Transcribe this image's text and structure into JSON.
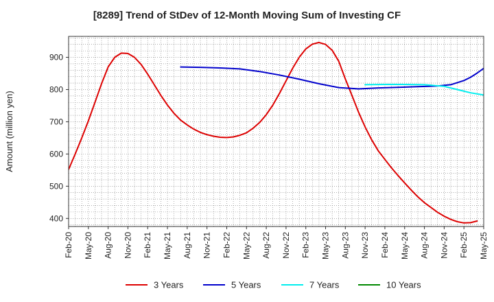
{
  "chart_data": {
    "type": "line",
    "title": "[8289]  Trend of StDev of 12-Month Moving Sum of Investing CF",
    "xlabel": "",
    "ylabel": "Amount (million yen)",
    "ylim": [
      375,
      965
    ],
    "yticks": [
      400,
      500,
      600,
      700,
      800,
      900
    ],
    "x_tick_labels": [
      "Feb-20",
      "May-20",
      "Aug-20",
      "Nov-20",
      "Feb-21",
      "May-21",
      "Aug-21",
      "Nov-21",
      "Feb-22",
      "May-22",
      "Aug-22",
      "Nov-22",
      "Feb-23",
      "May-23",
      "Aug-23",
      "Nov-23",
      "Feb-24",
      "May-24",
      "Aug-24",
      "Nov-24",
      "Feb-25",
      "May-25"
    ],
    "x_start": "2020-02",
    "x_end": "2025-05",
    "grid": true,
    "legend_position": "bottom",
    "series": [
      {
        "name": "3 Years",
        "color": "#dd0000",
        "points": [
          [
            "2020-02",
            552
          ],
          [
            "2020-03",
            600
          ],
          [
            "2020-04",
            650
          ],
          [
            "2020-05",
            703
          ],
          [
            "2020-06",
            760
          ],
          [
            "2020-07",
            818
          ],
          [
            "2020-08",
            870
          ],
          [
            "2020-09",
            900
          ],
          [
            "2020-10",
            913
          ],
          [
            "2020-11",
            912
          ],
          [
            "2020-12",
            900
          ],
          [
            "2021-01",
            878
          ],
          [
            "2021-02",
            848
          ],
          [
            "2021-03",
            815
          ],
          [
            "2021-04",
            782
          ],
          [
            "2021-05",
            752
          ],
          [
            "2021-06",
            726
          ],
          [
            "2021-07",
            705
          ],
          [
            "2021-08",
            690
          ],
          [
            "2021-09",
            677
          ],
          [
            "2021-10",
            667
          ],
          [
            "2021-11",
            660
          ],
          [
            "2021-12",
            655
          ],
          [
            "2022-01",
            652
          ],
          [
            "2022-02",
            651
          ],
          [
            "2022-03",
            653
          ],
          [
            "2022-04",
            658
          ],
          [
            "2022-05",
            666
          ],
          [
            "2022-06",
            680
          ],
          [
            "2022-07",
            698
          ],
          [
            "2022-08",
            722
          ],
          [
            "2022-09",
            752
          ],
          [
            "2022-10",
            788
          ],
          [
            "2022-11",
            827
          ],
          [
            "2022-12",
            866
          ],
          [
            "2023-01",
            900
          ],
          [
            "2023-02",
            926
          ],
          [
            "2023-03",
            941
          ],
          [
            "2023-04",
            946
          ],
          [
            "2023-05",
            940
          ],
          [
            "2023-06",
            922
          ],
          [
            "2023-07",
            888
          ],
          [
            "2023-08",
            833
          ],
          [
            "2023-09",
            782
          ],
          [
            "2023-10",
            730
          ],
          [
            "2023-11",
            684
          ],
          [
            "2023-12",
            644
          ],
          [
            "2024-01",
            610
          ],
          [
            "2024-02",
            583
          ],
          [
            "2024-03",
            557
          ],
          [
            "2024-04",
            533
          ],
          [
            "2024-05",
            510
          ],
          [
            "2024-06",
            488
          ],
          [
            "2024-07",
            467
          ],
          [
            "2024-08",
            449
          ],
          [
            "2024-09",
            434
          ],
          [
            "2024-10",
            419
          ],
          [
            "2024-11",
            407
          ],
          [
            "2024-12",
            397
          ],
          [
            "2025-01",
            390
          ],
          [
            "2025-02",
            386
          ],
          [
            "2025-03",
            387
          ],
          [
            "2025-04",
            392
          ]
        ]
      },
      {
        "name": "5 Years",
        "color": "#0000cc",
        "points": [
          [
            "2021-07",
            870
          ],
          [
            "2021-10",
            869
          ],
          [
            "2022-01",
            867
          ],
          [
            "2022-04",
            864
          ],
          [
            "2022-07",
            856
          ],
          [
            "2022-10",
            845
          ],
          [
            "2023-01",
            832
          ],
          [
            "2023-04",
            818
          ],
          [
            "2023-07",
            806
          ],
          [
            "2023-10",
            802
          ],
          [
            "2024-01",
            805
          ],
          [
            "2024-04",
            807
          ],
          [
            "2024-07",
            809
          ],
          [
            "2024-10",
            811
          ],
          [
            "2024-12",
            815
          ],
          [
            "2025-02",
            828
          ],
          [
            "2025-03",
            838
          ],
          [
            "2025-04",
            851
          ],
          [
            "2025-05",
            866
          ],
          [
            "2025-06",
            882
          ]
        ]
      },
      {
        "name": "7 Years",
        "color": "#00eeee",
        "points": [
          [
            "2023-11",
            815
          ],
          [
            "2024-02",
            816
          ],
          [
            "2024-05",
            816
          ],
          [
            "2024-08",
            815
          ],
          [
            "2024-11",
            810
          ],
          [
            "2025-01",
            800
          ],
          [
            "2025-03",
            790
          ],
          [
            "2025-05",
            783
          ],
          [
            "2025-07",
            781
          ],
          [
            "2025-09",
            785
          ]
        ]
      },
      {
        "name": "10 Years",
        "color": "#008800",
        "points": []
      }
    ]
  }
}
